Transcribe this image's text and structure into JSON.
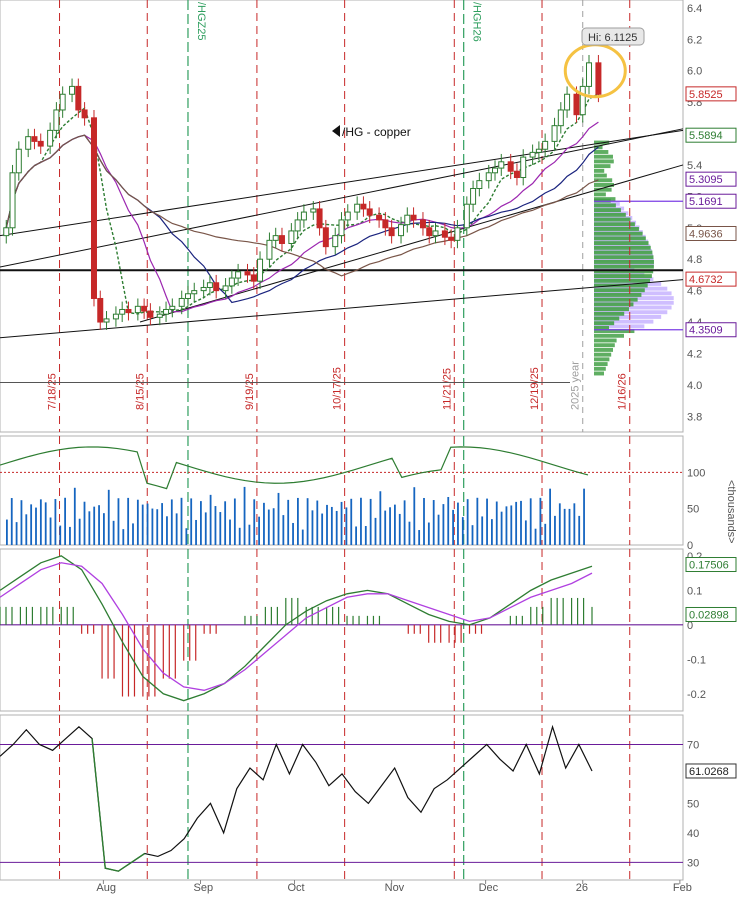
{
  "colors": {
    "up": "#2e7d32",
    "down": "#c62828",
    "sma_green": "#2e7d32",
    "sma_purple": "#9c27b0",
    "sma_blue": "#1a237e",
    "sma_brown": "#795548",
    "volume_bar": "#1565c0",
    "volume_profile": "#43a047",
    "volume_profile_upper": "#c7b3ff",
    "expiry_line": "#c62828",
    "roll_line": "#2e9e5e",
    "highlight_circle": "#f5c242",
    "grid": "#e0e0e0",
    "axis_text": "#555555"
  },
  "chart_data": [
    {
      "type": "candlestick",
      "title": "/HG - copper",
      "x": [
        "2025-07-01",
        "2025-07-03",
        "2025-07-05",
        "2025-07-08",
        "2025-07-10",
        "2025-07-12",
        "2025-07-15",
        "2025-07-17",
        "2025-07-19",
        "2025-07-22",
        "2025-07-24",
        "2025-07-26",
        "2025-07-29",
        "2025-07-31",
        "2025-08-02",
        "2025-08-05",
        "2025-08-07",
        "2025-08-09",
        "2025-08-12",
        "2025-08-14",
        "2025-08-16",
        "2025-08-19",
        "2025-08-21",
        "2025-08-23",
        "2025-08-26",
        "2025-08-28",
        "2025-08-30",
        "2025-09-02",
        "2025-09-04",
        "2025-09-06",
        "2025-09-09",
        "2025-09-11",
        "2025-09-13",
        "2025-09-16",
        "2025-09-18",
        "2025-09-20",
        "2025-09-23",
        "2025-09-25",
        "2025-09-27",
        "2025-09-30",
        "2025-10-02",
        "2025-10-04",
        "2025-10-07",
        "2025-10-09",
        "2025-10-11",
        "2025-10-14",
        "2025-10-16",
        "2025-10-18",
        "2025-10-21",
        "2025-10-23",
        "2025-10-25",
        "2025-10-28",
        "2025-10-30",
        "2025-11-01",
        "2025-11-04",
        "2025-11-06",
        "2025-11-08",
        "2025-11-11",
        "2025-11-13",
        "2025-11-15",
        "2025-11-18",
        "2025-11-20",
        "2025-11-22",
        "2025-11-25",
        "2025-11-27",
        "2025-11-29",
        "2025-12-02",
        "2025-12-04",
        "2025-12-06",
        "2025-12-09",
        "2025-12-11",
        "2025-12-13",
        "2025-12-16",
        "2025-12-18",
        "2025-12-20",
        "2025-12-23",
        "2025-12-25",
        "2025-12-27",
        "2025-12-30",
        "2026-01-01",
        "2026-01-03",
        "2026-01-06"
      ],
      "close": [
        5.0,
        5.35,
        5.5,
        5.58,
        5.55,
        5.52,
        5.62,
        5.75,
        5.85,
        5.9,
        5.75,
        5.7,
        4.55,
        4.4,
        4.42,
        4.45,
        4.48,
        4.46,
        4.5,
        4.47,
        4.43,
        4.45,
        4.48,
        4.5,
        4.55,
        4.58,
        4.6,
        4.62,
        4.65,
        4.6,
        4.63,
        4.68,
        4.72,
        4.7,
        4.66,
        4.8,
        4.92,
        4.95,
        4.9,
        4.98,
        5.05,
        5.1,
        5.12,
        5.0,
        4.88,
        4.95,
        5.05,
        5.1,
        5.15,
        5.12,
        5.08,
        5.05,
        5.0,
        4.95,
        5.02,
        5.08,
        5.05,
        5.0,
        4.95,
        4.98,
        4.94,
        4.92,
        5.0,
        5.15,
        5.25,
        5.3,
        5.35,
        5.38,
        5.42,
        5.36,
        5.32,
        5.45,
        5.48,
        5.5,
        5.55,
        5.65,
        5.75,
        5.85,
        5.72,
        5.9,
        6.05,
        5.85
      ],
      "ylabel": "",
      "ylim": [
        3.7,
        6.45
      ],
      "yticks": [
        6.4,
        6.2,
        6.0,
        5.8,
        5.6,
        5.4,
        5.2,
        5.0,
        4.8,
        4.6,
        4.4,
        4.2,
        4.0,
        3.8
      ],
      "price_labels": [
        {
          "value": "5.8525",
          "color": "#c62828"
        },
        {
          "value": "5.5894",
          "color": "#2e7d32"
        },
        {
          "value": "5.3095",
          "color": "#6a1b9a"
        },
        {
          "value": "5.1691",
          "color": "#6a1b9a"
        },
        {
          "value": "4.9636",
          "color": "#795548"
        },
        {
          "value": "4.6732",
          "color": "#c62828"
        },
        {
          "value": "4.3509",
          "color": "#6a1b9a"
        }
      ],
      "annotations": {
        "high_label": "Hi: 6.1125",
        "roll_labels": [
          "/HGZ25",
          "/HGH26"
        ],
        "expiry_labels": [
          "7/18/25",
          "8/15/25",
          "9/19/25",
          "10/17/25",
          "11/21/25",
          "12/19/25",
          "2025 year",
          "1/16/26"
        ]
      }
    },
    {
      "type": "bar",
      "title": "",
      "ylabel": "<thousands>",
      "ylim": [
        0,
        150
      ],
      "yticks": [
        100,
        50,
        0
      ]
    },
    {
      "type": "line",
      "title": "",
      "series": [
        {
          "values": [
            0.1,
            0.14,
            0.18,
            0.2,
            0.16,
            0.06,
            -0.05,
            -0.15,
            -0.2,
            -0.22,
            -0.2,
            -0.17,
            -0.12,
            -0.06,
            0.0,
            0.04,
            0.07,
            0.09,
            0.1,
            0.09,
            0.06,
            0.03,
            0.01,
            0.0,
            0.02,
            0.06,
            0.1,
            0.13,
            0.15,
            0.17
          ]
        },
        {
          "values": [
            0.08,
            0.12,
            0.16,
            0.18,
            0.17,
            0.12,
            0.03,
            -0.07,
            -0.14,
            -0.18,
            -0.19,
            -0.17,
            -0.13,
            -0.08,
            -0.03,
            0.02,
            0.05,
            0.08,
            0.09,
            0.09,
            0.07,
            0.05,
            0.03,
            0.01,
            0.02,
            0.05,
            0.08,
            0.1,
            0.12,
            0.15
          ]
        }
      ],
      "value_labels": [
        {
          "value": "0.17506",
          "color": "#2e7d32"
        },
        {
          "value": "0.02898",
          "color": "#2e7d32"
        }
      ],
      "ylim": [
        -0.25,
        0.22
      ],
      "yticks": [
        0.2,
        0.1,
        0,
        -0.1,
        -0.2
      ],
      "ytick_labels": [
        "0.2",
        "0.1",
        "0",
        "-0.1",
        "-0.2"
      ]
    },
    {
      "type": "line",
      "title": "",
      "series": [
        {
          "values": [
            66,
            70,
            75,
            70,
            68,
            72,
            76,
            72,
            28,
            27,
            30,
            33,
            32,
            34,
            38,
            45,
            50,
            40,
            55,
            62,
            58,
            70,
            60,
            70,
            64,
            56,
            60,
            54,
            50,
            56,
            62,
            52,
            47,
            55,
            58,
            62,
            66,
            70,
            65,
            61,
            70,
            60,
            76,
            62,
            70,
            61
          ]
        }
      ],
      "value_labels": [
        {
          "value": "61.0268",
          "color": "#222222"
        }
      ],
      "ylim": [
        24,
        80
      ],
      "yticks": [
        70,
        60,
        50,
        40,
        30
      ],
      "x_tick_labels": [
        "Aug",
        "Sep",
        "Oct",
        "Nov",
        "Dec",
        "26",
        "Feb"
      ]
    }
  ]
}
